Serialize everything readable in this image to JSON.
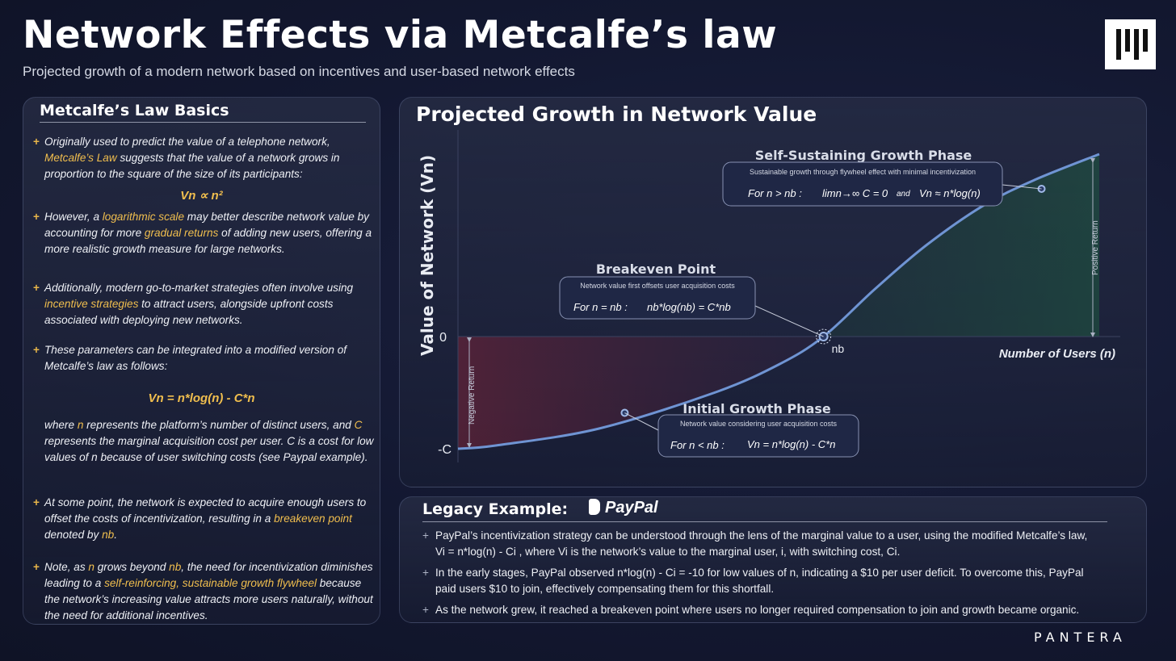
{
  "header": {
    "title": "Network Effects via Metcalfe’s law",
    "subtitle": "Projected growth of a modern network based on incentives and user-based network effects"
  },
  "basics": {
    "heading": "Metcalfe’s Law Basics",
    "b1": {
      "t1": "Originally used to predict the value of a telephone network,",
      "hl": "Metcalfe’s Law",
      "t2": " suggests that the value of a network grows in proportion to the square of the size of its participants:"
    },
    "formula1": "Vn ∝ n²",
    "b2": {
      "t1": "However, a ",
      "hl1": "logarithmic scale",
      "t2": " may better describe network value by accounting for more ",
      "hl2": "gradual returns",
      "t3": " of adding new users, offering a more realistic growth measure for large networks."
    },
    "b3": {
      "t1": "Additionally, modern go-to-market strategies often involve using ",
      "hl": "incentive strategies",
      "t2": " to attract users, alongside upfront costs associated with deploying new networks."
    },
    "b4": "These parameters can be integrated into a modified version of Metcalfe’s law as follows:",
    "formula2": "Vn = n*log(n) - C*n",
    "b4b": {
      "t1": "where  ",
      "hl1": "n",
      "t2": " represents the platform’s number of distinct users, and ",
      "hl2": "C",
      "t3": " represents the marginal acquisition cost per user. C is a cost for low values of n because of user switching costs (see Paypal example)."
    },
    "b5": {
      "t1": "At some point, the network is expected to acquire enough users to offset the costs of incentivization, resulting in a ",
      "hl1": "breakeven point",
      "t2": " denoted by ",
      "hl2": "nb",
      "t3": "."
    },
    "b6": {
      "t1": "Note, as ",
      "hl1": "n",
      "t2": " grows beyond ",
      "hl2": "nb",
      "t3": ", the need for incentivization diminishes leading to a ",
      "hl3": "self-reinforcing, sustainable growth flywheel",
      "t4": " because the network’s increasing value attracts more users naturally, without the need for additional incentives."
    }
  },
  "chart_panel": {
    "heading": "Projected Growth in Network Value",
    "ylabel": "Value of Network (Vn)",
    "xlabel": "Number of Users (n)",
    "tick_zero": "0",
    "tick_negc": "-C",
    "nb_label": "nb",
    "negative_return": "Negative  Return",
    "positive_return": "Positive  Return",
    "self": {
      "title": "Self-Sustaining Growth Phase",
      "desc": "Sustainable growth through flywheel effect with minimal incentivization",
      "cond": "For n > nb :",
      "f1": "limn→∞ C = 0",
      "and": "and",
      "f2": "Vn ≈ n*log(n)"
    },
    "breakeven": {
      "title": "Breakeven Point",
      "desc": "Network value first offsets user acquisition costs",
      "cond": "For n = nb :",
      "f1": "nb*log(nb) = C*nb"
    },
    "initial": {
      "title": "Initial Growth Phase",
      "desc": "Network value considering user acquisition costs",
      "cond": "For n < nb :",
      "f1": "Vn = n*log(n) - C*n"
    }
  },
  "chart_data": {
    "type": "line",
    "xlabel": "Number of Users (n)",
    "ylabel": "Value of Network (Vn)",
    "series": [
      {
        "values": [
          -1.0,
          -0.97,
          -0.82,
          -0.5,
          -0.25,
          0.0,
          0.26,
          0.5,
          0.72,
          0.86,
          1.0
        ],
        "x": [
          0,
          0.06,
          0.22,
          0.4,
          0.5,
          0.57,
          0.65,
          0.73,
          0.82,
          0.9,
          1.0
        ]
      }
    ],
    "yticks": [
      "-C",
      "0"
    ],
    "annotated_points": [
      {
        "label": "Initial Growth Phase",
        "x": 0.26,
        "y": -0.68
      },
      {
        "label": "Breakeven Point",
        "x": 0.57,
        "y": 0.0
      },
      {
        "label": "Self-Sustaining Growth Phase",
        "x": 0.91,
        "y": 0.81
      }
    ],
    "grid": false,
    "legend": "none"
  },
  "legacy": {
    "heading": "Legacy Example:",
    "paypal": "PayPal",
    "l1": "PayPal’s incentivization strategy can be understood through the lens of the marginal value to a user, using the modified Metcalfe’s law, Vi = n*log(n) - Ci , where Vi is the network’s value to the marginal user, i, with switching cost, Ci.",
    "l2": "In the early stages, PayPal observed n*log(n) - Ci = -10 for low values of n, indicating a $10 per user deficit. To overcome this, PayPal paid users $10 to join, effectively compensating them for this shortfall.",
    "l3": "As the network grew, it reached a breakeven point where users no longer required compensation to join and growth became organic."
  },
  "footer": {
    "brand": "PANTERA"
  },
  "colors": {
    "accent": "#f0be4e",
    "curve": "#6f94d3",
    "background": "#11162a"
  }
}
